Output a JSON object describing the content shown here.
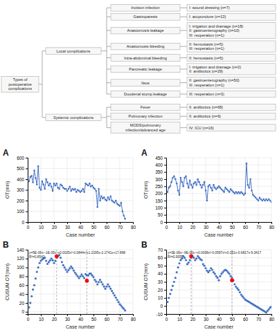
{
  "chart_data": [
    {
      "type": "tree",
      "root": "Types of\npostoperative\ncomplications",
      "branches": [
        {
          "label": "Local complications",
          "children": [
            {
              "label": "Incision infection",
              "note": "I: wound dressing (n=7)"
            },
            {
              "label": "Gastroparesis",
              "note": "I: acupuncture (n=13)"
            },
            {
              "label": "Anastomosis leakage",
              "note": "I: irrigation and drainage (n=18)\nII: gastroenterography (n=10)\nIII: reoperation (n=1)"
            },
            {
              "label": "Anastomosis bleeding",
              "note": "II: hemostasis (n=5)\nIII: reoperation (n=1)"
            },
            {
              "label": "Intra-abdominal bleeding",
              "note": "II: hemostasis (n=5)"
            },
            {
              "label": "Pancreatic leakage",
              "note": "I: irrigation and drainage (n=2)\nII: antibiotics (n=29)"
            },
            {
              "label": "Ileus",
              "note": "II: gastroenterography (n=50)\nIII: reoperation (n=1)"
            },
            {
              "label": "Duodenal stump leakage",
              "note": "III: reoperation (n=3)"
            }
          ]
        },
        {
          "label": "Systemic complications",
          "children": [
            {
              "label": "Fever",
              "note": "II: antibiotics (n=68)"
            },
            {
              "label": "Pulmonary infection",
              "note": "II: antibiotics (n=9)"
            },
            {
              "label": "MODS/pulmonary\ninfection/advanced age",
              "note": "IV: ICU (n=16)"
            }
          ]
        }
      ]
    },
    {
      "type": "line",
      "title": "A",
      "x_label": "Case number",
      "y_label": "OT(min)",
      "x": [
        1,
        2,
        3,
        4,
        5,
        6,
        7,
        8,
        9,
        10,
        11,
        12,
        13,
        14,
        15,
        16,
        17,
        18,
        19,
        20,
        21,
        22,
        23,
        24,
        25,
        26,
        27,
        28,
        29,
        30,
        31,
        32,
        33,
        34,
        35,
        36,
        37,
        38,
        39,
        40,
        41,
        42,
        43,
        44,
        45,
        46,
        47,
        48,
        49,
        50,
        51,
        52,
        53,
        54,
        55,
        56,
        57,
        58,
        59,
        60,
        61,
        62,
        63,
        64,
        65,
        66,
        67,
        68,
        69,
        70,
        71,
        72,
        73,
        74
      ],
      "series": [
        {
          "values": [
            380,
            420,
            430,
            370,
            480,
            410,
            350,
            520,
            320,
            300,
            380,
            350,
            310,
            400,
            370,
            340,
            360,
            330,
            290,
            360,
            340,
            360,
            320,
            310,
            350,
            340,
            320,
            310,
            310,
            290,
            310,
            330,
            290,
            310,
            300,
            310,
            280,
            300,
            290,
            280,
            290,
            310,
            280,
            360,
            350,
            340,
            360,
            330,
            340,
            320,
            310,
            290,
            140,
            310,
            200,
            240,
            220,
            230,
            210,
            200,
            230,
            210,
            240,
            200,
            190,
            180,
            200,
            170,
            160,
            150,
            180,
            100,
            60,
            30
          ],
          "color": "#4472c4",
          "marker": "circle"
        }
      ],
      "xlim": [
        0,
        80
      ],
      "xticks": [
        0,
        10,
        20,
        30,
        40,
        50,
        60,
        70,
        80
      ],
      "ylim": [
        0,
        600
      ],
      "yticks": [
        0,
        100,
        200,
        300,
        400,
        500,
        600
      ],
      "grid": true
    },
    {
      "type": "line",
      "title": "A",
      "x_label": "Case number",
      "y_label": "OT(min)",
      "x": [
        1,
        2,
        3,
        4,
        5,
        6,
        7,
        8,
        9,
        10,
        11,
        12,
        13,
        14,
        15,
        16,
        17,
        18,
        19,
        20,
        21,
        22,
        23,
        24,
        25,
        26,
        27,
        28,
        29,
        30,
        31,
        32,
        33,
        34,
        35,
        36,
        37,
        38,
        39,
        40,
        41,
        42,
        43,
        44,
        45,
        46,
        47,
        48,
        49,
        50,
        51,
        52,
        53,
        54,
        55,
        56,
        57,
        58,
        59,
        60,
        61,
        62,
        63,
        64,
        65,
        66,
        67,
        68,
        69,
        70,
        71,
        72,
        73,
        74,
        75,
        76,
        77,
        78,
        79,
        80
      ],
      "series": [
        {
          "values": [
            210,
            240,
            250,
            280,
            310,
            320,
            300,
            270,
            220,
            190,
            310,
            280,
            250,
            310,
            320,
            270,
            240,
            290,
            260,
            240,
            270,
            280,
            260,
            300,
            280,
            260,
            240,
            260,
            280,
            220,
            150,
            250,
            260,
            240,
            220,
            260,
            240,
            230,
            240,
            250,
            240,
            230,
            220,
            210,
            240,
            230,
            220,
            210,
            230,
            220,
            210,
            200,
            210,
            200,
            210,
            200,
            210,
            200,
            190,
            200,
            410,
            260,
            240,
            300,
            220,
            190,
            180,
            170,
            160,
            150,
            170,
            160,
            150,
            160,
            150,
            160,
            150,
            160,
            150,
            140
          ],
          "color": "#4472c4",
          "marker": "circle"
        }
      ],
      "xlim": [
        0,
        80
      ],
      "xticks": [
        0,
        10,
        20,
        30,
        40,
        50,
        60,
        70,
        80
      ],
      "ylim": [
        0,
        450
      ],
      "yticks": [
        0,
        50,
        100,
        150,
        200,
        250,
        300,
        350,
        400,
        450
      ],
      "grid": true
    },
    {
      "type": "scatter",
      "title": "B",
      "x_label": "Case number",
      "y_label": "CUSUM OT(min)",
      "annotations": [
        "y=5E-06x⁵-1E-05x⁴+0.0025x³-0.0844x²+1.2195x-2.1741x+17.898\nR²=0.8542"
      ],
      "series": [
        {
          "x": [
            1,
            2,
            3,
            4,
            5,
            6,
            7,
            8,
            9,
            10,
            11,
            12,
            13,
            14,
            15,
            16,
            17,
            18,
            19,
            20,
            21,
            22,
            23,
            24,
            25,
            26,
            27,
            28,
            29,
            30,
            31,
            32,
            33,
            34,
            35,
            36,
            37,
            38,
            39,
            40,
            41,
            42,
            43,
            44,
            45,
            46,
            47,
            48,
            49,
            50,
            51,
            52,
            53,
            54,
            55,
            56,
            57,
            58,
            59,
            60,
            61,
            62,
            63,
            64,
            65,
            66,
            67,
            68,
            69,
            70,
            71,
            72,
            73,
            74
          ],
          "values": [
            10,
            20,
            35,
            50,
            60,
            75,
            90,
            100,
            110,
            115,
            118,
            120,
            122,
            115,
            108,
            112,
            116,
            120,
            116,
            110,
            115,
            122,
            125,
            128,
            122,
            112,
            105,
            100,
            95,
            90,
            94,
            98,
            102,
            98,
            93,
            88,
            84,
            80,
            76,
            80,
            84,
            80,
            76,
            85,
            82,
            82,
            86,
            86,
            82,
            78,
            72,
            68,
            62,
            67,
            72,
            67,
            62,
            57,
            52,
            57,
            62,
            57,
            52,
            47,
            42,
            37,
            32,
            27,
            22,
            17,
            14,
            10,
            7,
            3
          ],
          "color": "#4472c4"
        },
        {
          "x": [
            22,
            45
          ],
          "values": [
            125,
            70
          ],
          "color": "#ff0000"
        }
      ],
      "xlim": [
        0,
        80
      ],
      "xticks": [
        0,
        10,
        20,
        30,
        40,
        50,
        60,
        70,
        80
      ],
      "ylim": [
        -5,
        140
      ],
      "yticks": [
        0,
        20,
        40,
        60,
        80,
        100,
        120,
        140
      ],
      "grid": true
    },
    {
      "type": "scatter",
      "title": "B",
      "x_label": "Case number",
      "y_label": "CUSUM OT(min)",
      "annotations": [
        "y=3E-06x⁵-9E-06x⁴+0.0008x³-0.0597x²+0.351x-0.6817x-9.3417\nR²=0.9055"
      ],
      "series": [
        {
          "x": [
            1,
            2,
            3,
            4,
            5,
            6,
            7,
            8,
            9,
            10,
            11,
            12,
            13,
            14,
            15,
            16,
            17,
            18,
            19,
            20,
            21,
            22,
            23,
            24,
            25,
            26,
            27,
            28,
            29,
            30,
            31,
            32,
            33,
            34,
            35,
            36,
            37,
            38,
            39,
            40,
            41,
            42,
            43,
            44,
            45,
            46,
            47,
            48,
            49,
            50,
            51,
            52,
            53,
            54,
            55,
            56,
            57,
            58,
            59,
            60,
            61,
            62,
            63,
            64,
            65,
            66,
            67,
            68,
            69,
            70,
            71,
            72,
            73,
            74,
            75,
            76,
            77,
            78,
            79,
            80
          ],
          "values": [
            5,
            10,
            15,
            20,
            25,
            30,
            35,
            42,
            48,
            53,
            57,
            59,
            62,
            60,
            57,
            52,
            54,
            57,
            60,
            62,
            60,
            57,
            59,
            62,
            60,
            58,
            57,
            52,
            50,
            47,
            44,
            42,
            44,
            47,
            45,
            42,
            40,
            37,
            35,
            32,
            37,
            40,
            42,
            44,
            45,
            44,
            42,
            40,
            37,
            35,
            32,
            27,
            24,
            22,
            20,
            17,
            14,
            12,
            10,
            8,
            7,
            6,
            5,
            4,
            3,
            2,
            1,
            0,
            -1,
            -2,
            -3,
            -4,
            -5,
            -6,
            -7,
            -8,
            -6,
            -4,
            -2,
            -1
          ],
          "color": "#4472c4"
        },
        {
          "x": [
            19,
            50
          ],
          "values": [
            62,
            32
          ],
          "color": "#ff0000"
        }
      ],
      "xlim": [
        0,
        80
      ],
      "xticks": [
        0,
        10,
        20,
        30,
        40,
        50,
        60,
        70,
        80
      ],
      "ylim": [
        -10,
        70
      ],
      "yticks": [
        -10,
        0,
        10,
        20,
        30,
        40,
        50,
        60,
        70
      ],
      "grid": true
    }
  ]
}
